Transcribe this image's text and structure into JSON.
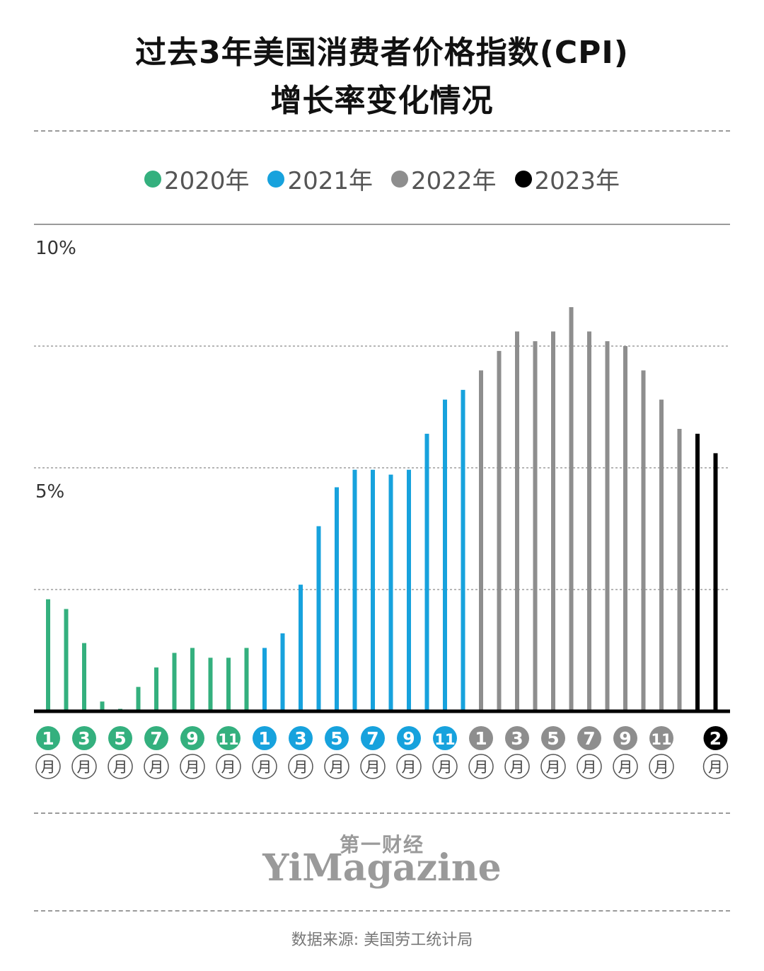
{
  "title": {
    "line1": "过去3年美国消费者价格指数(CPI)",
    "line2": "增长率变化情况"
  },
  "legend": [
    {
      "label": "2020年",
      "color": "#34b07e"
    },
    {
      "label": "2021年",
      "color": "#17a2dd"
    },
    {
      "label": "2022年",
      "color": "#8e8e8e"
    },
    {
      "label": "2023年",
      "color": "#000000"
    }
  ],
  "chart_data": {
    "type": "bar",
    "ylim": [
      0,
      10
    ],
    "y_tick_labels": [
      {
        "value": 10,
        "label": "10%"
      },
      {
        "value": 5,
        "label": "5%"
      }
    ],
    "gridlines": [
      2.5,
      5,
      7.5
    ],
    "month_word": "月",
    "series": [
      {
        "name": "2020年",
        "color": "#34b07e",
        "months": [
          1,
          2,
          3,
          4,
          5,
          6,
          7,
          8,
          9,
          10,
          11,
          12
        ],
        "values": [
          2.3,
          2.1,
          1.4,
          0.2,
          0.05,
          0.5,
          0.9,
          1.2,
          1.3,
          1.1,
          1.1,
          1.3
        ],
        "month_labels": [
          "1",
          "",
          "3",
          "",
          "5",
          "",
          "7",
          "",
          "9",
          "",
          "11",
          ""
        ]
      },
      {
        "name": "2021年",
        "color": "#17a2dd",
        "months": [
          1,
          2,
          3,
          4,
          5,
          6,
          7,
          8,
          9,
          10,
          11,
          12
        ],
        "values": [
          1.3,
          1.6,
          2.6,
          3.8,
          4.6,
          4.96,
          4.96,
          4.86,
          4.96,
          5.7,
          6.4,
          6.6
        ],
        "month_labels": [
          "1",
          "",
          "3",
          "",
          "5",
          "",
          "7",
          "",
          "9",
          "",
          "11",
          ""
        ]
      },
      {
        "name": "2022年",
        "color": "#8e8e8e",
        "months": [
          1,
          2,
          3,
          4,
          5,
          6,
          7,
          8,
          9,
          10,
          11,
          12
        ],
        "values": [
          7.0,
          7.4,
          7.8,
          7.6,
          7.8,
          8.3,
          7.8,
          7.6,
          7.5,
          7.0,
          6.4,
          5.8
        ],
        "month_labels": [
          "1",
          "",
          "3",
          "",
          "5",
          "",
          "7",
          "",
          "9",
          "",
          "11",
          ""
        ]
      },
      {
        "name": "2023年",
        "color": "#000000",
        "months": [
          1,
          2
        ],
        "values": [
          5.7,
          5.3
        ],
        "month_labels": [
          "",
          "2"
        ]
      }
    ]
  },
  "brand": {
    "cn": "第一财经",
    "en": "YiMagazine"
  },
  "source": "数据来源: 美国劳工统计局"
}
